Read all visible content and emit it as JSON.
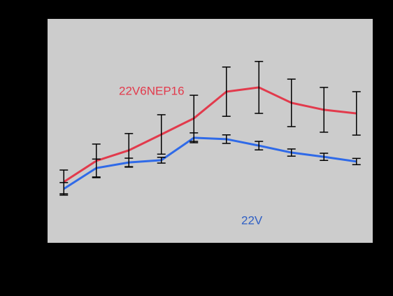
{
  "chart_data": {
    "type": "line",
    "categories": [
      null,
      null,
      null,
      null,
      null,
      null,
      null,
      null,
      null,
      null
    ],
    "ylim": [
      0,
      100
    ],
    "series": [
      {
        "name": "22V6NEP16",
        "color": "#e23a4c",
        "values": [
          27.2,
          36.6,
          41.3,
          48.4,
          55.6,
          67.5,
          69.4,
          62.5,
          59.4,
          57.8
        ],
        "errors": [
          5.3,
          7.5,
          7.5,
          8.8,
          10.3,
          11,
          11.6,
          10.6,
          10,
          9.7
        ]
      },
      {
        "name": "22V",
        "color": "#2f6ae8",
        "values": [
          24.1,
          33.4,
          35.9,
          36.9,
          46.9,
          46.3,
          43.4,
          40.3,
          38.4,
          36.3
        ],
        "errors": [
          2.8,
          4,
          1.9,
          1.3,
          2.2,
          1.9,
          1.9,
          1.6,
          1.6,
          1.4
        ]
      }
    ]
  }
}
